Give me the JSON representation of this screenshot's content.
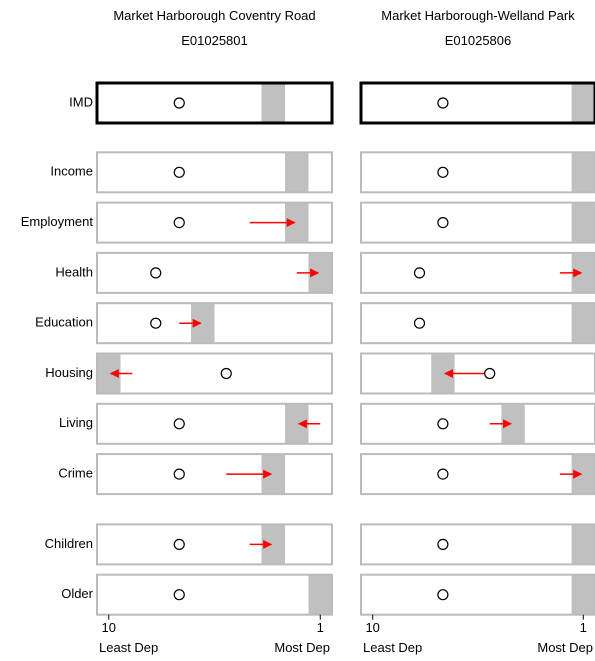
{
  "chart_data": {
    "type": "decile",
    "rows": [
      "IMD",
      "Income",
      "Employment",
      "Health",
      "Education",
      "Housing",
      "Living",
      "Crime",
      "Children",
      "Older"
    ],
    "xlim": [
      10.5,
      0.5
    ],
    "xticks": [
      10,
      1
    ],
    "x_label_left": "Least Dep",
    "x_label_right": "Most Dep",
    "bar_color": "#c0c0c0",
    "arrow_color": "#ff0000",
    "series": [
      {
        "name": "Market Harborough Coventry Road",
        "code": "E01025801",
        "values": [
          3,
          2,
          2,
          1,
          6,
          10,
          2,
          3,
          3,
          1
        ],
        "comparison": [
          7,
          7,
          7,
          8,
          8,
          5,
          7,
          7,
          7,
          7
        ],
        "previous": [
          null,
          null,
          4,
          2,
          7,
          9,
          1,
          5,
          4,
          null
        ]
      },
      {
        "name": "Market Harborough-Welland Park",
        "code": "E01025806",
        "values": [
          1,
          1,
          1,
          1,
          1,
          7,
          4,
          1,
          1,
          1
        ],
        "comparison": [
          7,
          7,
          7,
          8,
          8,
          5,
          7,
          7,
          7,
          7
        ],
        "previous": [
          null,
          null,
          null,
          2,
          null,
          5,
          5,
          2,
          null,
          null
        ]
      }
    ]
  }
}
